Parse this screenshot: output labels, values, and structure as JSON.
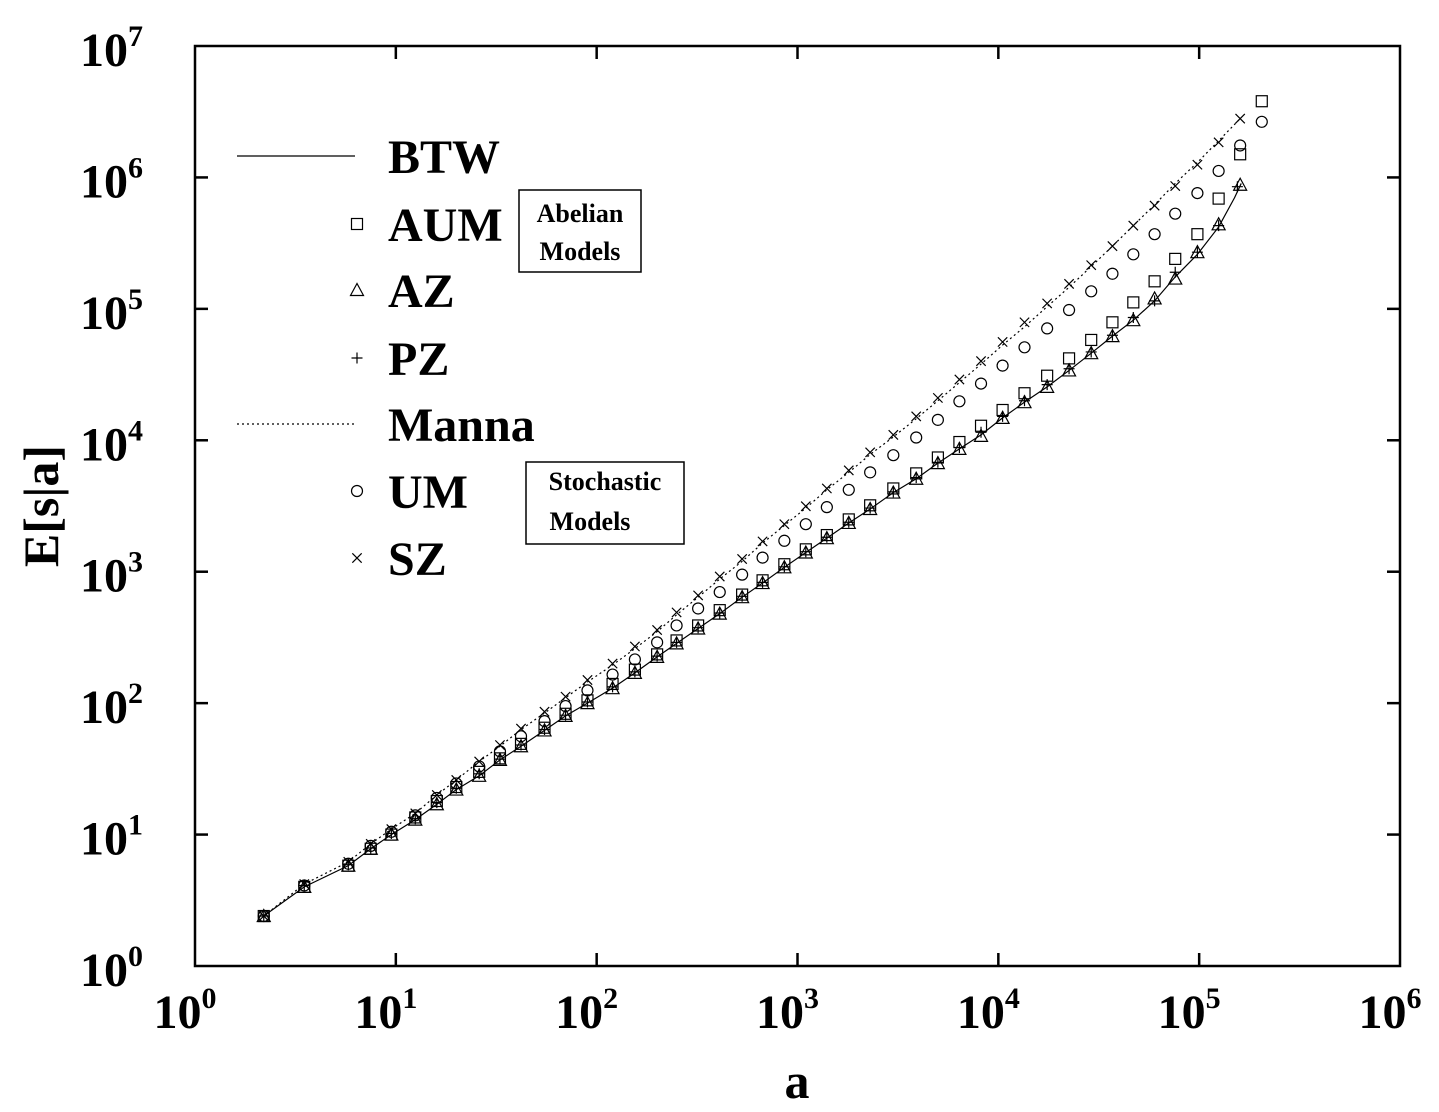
{
  "chart_data": {
    "type": "scatter",
    "xlabel": "a",
    "ylabel": "E[s|a]",
    "xscale": "log",
    "yscale": "log",
    "xlim": [
      1,
      1000000
    ],
    "ylim": [
      1,
      10000000
    ],
    "x_ticks": [
      {
        "base": "10",
        "exp": "0"
      },
      {
        "base": "10",
        "exp": "1"
      },
      {
        "base": "10",
        "exp": "2"
      },
      {
        "base": "10",
        "exp": "3"
      },
      {
        "base": "10",
        "exp": "4"
      },
      {
        "base": "10",
        "exp": "5"
      },
      {
        "base": "10",
        "exp": "6"
      }
    ],
    "y_ticks": [
      {
        "base": "10",
        "exp": "0"
      },
      {
        "base": "10",
        "exp": "1"
      },
      {
        "base": "10",
        "exp": "2"
      },
      {
        "base": "10",
        "exp": "3"
      },
      {
        "base": "10",
        "exp": "4"
      },
      {
        "base": "10",
        "exp": "5"
      },
      {
        "base": "10",
        "exp": "6"
      },
      {
        "base": "10",
        "exp": "7"
      }
    ],
    "grid": false,
    "legend_position": "upper-left",
    "legend": [
      {
        "label": "BTW",
        "marker": "solid-line"
      },
      {
        "label": "AUM",
        "marker": "square"
      },
      {
        "label": "AZ",
        "marker": "triangle"
      },
      {
        "label": "PZ",
        "marker": "plus"
      },
      {
        "label": "Manna",
        "marker": "dotted-line"
      },
      {
        "label": "UM",
        "marker": "circle"
      },
      {
        "label": "SZ",
        "marker": "cross"
      }
    ],
    "annotations": [
      {
        "lines": [
          "Abelian",
          "Models"
        ]
      },
      {
        "lines": [
          "Stochastic",
          "Models"
        ]
      }
    ],
    "series": [
      {
        "name": "BTW",
        "marker": "solid-line",
        "x": [
          2.2,
          3.5,
          5.8,
          7.5,
          9.5,
          12.5,
          16,
          20,
          26,
          33,
          42,
          55,
          70,
          90,
          120,
          155,
          200,
          250,
          320,
          410,
          530,
          670,
          860,
          1100,
          1400,
          1800,
          2300,
          3000,
          3900,
          5000,
          6400,
          8200,
          10500,
          13500,
          17500,
          22500,
          29000,
          37000,
          47000,
          60000,
          76000,
          98000,
          125000,
          150000,
          162000
        ],
        "y": [
          2.4,
          4.0,
          5.8,
          7.8,
          10,
          13,
          17,
          22,
          28,
          37,
          47,
          62,
          80,
          100,
          130,
          170,
          225,
          285,
          370,
          480,
          640,
          820,
          1080,
          1400,
          1800,
          2350,
          3000,
          4000,
          5100,
          6700,
          8600,
          11000,
          14800,
          19500,
          25500,
          34000,
          46000,
          62000,
          82000,
          115000,
          175000,
          260000,
          420000,
          700000,
          900000
        ]
      },
      {
        "name": "AUM",
        "marker": "square",
        "x": [
          2.2,
          3.5,
          5.8,
          7.5,
          9.5,
          12.5,
          16,
          20,
          26,
          33,
          42,
          55,
          70,
          90,
          120,
          155,
          200,
          250,
          320,
          410,
          530,
          670,
          860,
          1100,
          1400,
          1800,
          2300,
          3000,
          3900,
          5000,
          6400,
          8200,
          10500,
          13500,
          17500,
          22500,
          29000,
          37000,
          47000,
          60000,
          76000,
          98000,
          125000,
          160000,
          205000
        ],
        "y": [
          2.4,
          4.0,
          5.8,
          7.8,
          10,
          13.5,
          18,
          23,
          30,
          38,
          49,
          65,
          83,
          105,
          140,
          180,
          235,
          300,
          390,
          510,
          670,
          860,
          1140,
          1480,
          1900,
          2500,
          3200,
          4300,
          5600,
          7400,
          9700,
          12900,
          17000,
          22800,
          31000,
          42000,
          58000,
          79000,
          112000,
          162000,
          240000,
          370000,
          690000,
          1500000,
          3800000
        ]
      },
      {
        "name": "AZ",
        "marker": "triangle",
        "x": [
          2.2,
          3.5,
          5.8,
          7.5,
          9.5,
          12.5,
          16,
          20,
          26,
          33,
          42,
          55,
          70,
          90,
          120,
          155,
          200,
          250,
          320,
          410,
          530,
          670,
          860,
          1100,
          1400,
          1800,
          2300,
          3000,
          3900,
          5000,
          6400,
          8200,
          10500,
          13500,
          17500,
          22500,
          29000,
          37000,
          47000,
          60000,
          76000,
          98000,
          125000,
          160000
        ],
        "y": [
          2.4,
          4.0,
          5.8,
          7.8,
          10,
          13,
          17,
          22,
          28,
          37,
          47,
          62,
          80,
          100,
          130,
          170,
          225,
          285,
          370,
          480,
          640,
          820,
          1080,
          1400,
          1800,
          2350,
          3000,
          4000,
          5100,
          6700,
          8600,
          10800,
          14800,
          19500,
          25500,
          34000,
          46000,
          62000,
          82000,
          120000,
          170000,
          270000,
          440000,
          880000
        ]
      },
      {
        "name": "PZ",
        "marker": "plus",
        "x": [
          2.2,
          3.5,
          5.8,
          7.5,
          9.5,
          12.5,
          16,
          20,
          26,
          33,
          42,
          55,
          70,
          90,
          120,
          155,
          200,
          250,
          320,
          410,
          530,
          670,
          860,
          1100,
          1400,
          1800,
          2300,
          3000,
          3900,
          5000,
          6400,
          8200,
          10500,
          13500,
          17500,
          22500,
          29000,
          37000,
          47000,
          60000,
          76000,
          98000,
          125000,
          155000
        ],
        "y": [
          2.4,
          4.1,
          5.9,
          7.9,
          10.2,
          13.2,
          17.5,
          22.5,
          29,
          37.5,
          48,
          63,
          81,
          102,
          133,
          173,
          228,
          290,
          375,
          485,
          650,
          830,
          1090,
          1420,
          1830,
          2380,
          3050,
          4050,
          5200,
          6800,
          8800,
          11500,
          15200,
          20000,
          26500,
          35000,
          47000,
          63000,
          86000,
          115000,
          190000,
          270000,
          430000,
          850000
        ]
      },
      {
        "name": "Manna",
        "marker": "dotted-line",
        "x": [
          2.2,
          3.5,
          5.8,
          7.5,
          9.5,
          12.5,
          16,
          20,
          26,
          33,
          42,
          55,
          70,
          90,
          120,
          155,
          200,
          250,
          320,
          410,
          530,
          670,
          860,
          1100,
          1400,
          1800,
          2300,
          3000,
          3900,
          5000,
          6400,
          8200,
          10500,
          13500,
          17500,
          22500,
          29000,
          37000,
          47000,
          60000,
          76000,
          98000,
          125000,
          160000
        ],
        "y": [
          2.4,
          4.2,
          6.2,
          8.5,
          11,
          14.5,
          20,
          26,
          36,
          47,
          63,
          84,
          110,
          145,
          195,
          260,
          350,
          470,
          640,
          880,
          1200,
          1650,
          2250,
          3050,
          4200,
          5700,
          7800,
          10600,
          14600,
          20000,
          27500,
          38000,
          53000,
          73000,
          104000,
          146000,
          210000,
          300000,
          430000,
          620000,
          900000,
          1300000,
          1900000,
          2800000
        ]
      },
      {
        "name": "UM",
        "marker": "circle",
        "x": [
          2.2,
          3.5,
          5.8,
          7.5,
          9.5,
          12.5,
          16,
          20,
          26,
          33,
          42,
          55,
          70,
          90,
          120,
          155,
          200,
          250,
          320,
          410,
          530,
          670,
          860,
          1100,
          1400,
          1800,
          2300,
          3000,
          3900,
          5000,
          6400,
          8200,
          10500,
          13500,
          17500,
          22500,
          29000,
          37000,
          47000,
          60000,
          76000,
          98000,
          125000,
          160000,
          205000
        ],
        "y": [
          2.4,
          4.1,
          6.0,
          8.2,
          10.5,
          14,
          19,
          24.5,
          33,
          43,
          56,
          73,
          95,
          125,
          165,
          215,
          290,
          390,
          525,
          700,
          950,
          1280,
          1720,
          2300,
          3100,
          4200,
          5700,
          7700,
          10500,
          14300,
          19800,
          27000,
          37000,
          51000,
          71000,
          98000,
          136000,
          185000,
          260000,
          370000,
          530000,
          760000,
          1120000,
          1750000,
          2650000
        ]
      },
      {
        "name": "SZ",
        "marker": "cross",
        "x": [
          2.2,
          3.5,
          5.8,
          7.5,
          9.5,
          12.5,
          16,
          20,
          26,
          33,
          42,
          55,
          70,
          90,
          120,
          155,
          200,
          250,
          320,
          410,
          530,
          670,
          860,
          1100,
          1400,
          1800,
          2300,
          3000,
          3900,
          5000,
          6400,
          8200,
          10500,
          13500,
          17500,
          22500,
          29000,
          37000,
          47000,
          60000,
          76000,
          98000,
          125000,
          160000
        ],
        "y": [
          2.4,
          4.2,
          6.2,
          8.5,
          11,
          14.5,
          20,
          26,
          36,
          48,
          64,
          86,
          112,
          150,
          200,
          270,
          360,
          490,
          660,
          920,
          1250,
          1700,
          2300,
          3150,
          4300,
          5900,
          8100,
          11000,
          15200,
          21000,
          29000,
          40000,
          56000,
          79000,
          110000,
          155000,
          215000,
          300000,
          430000,
          610000,
          860000,
          1250000,
          1850000,
          2800000
        ]
      }
    ]
  }
}
